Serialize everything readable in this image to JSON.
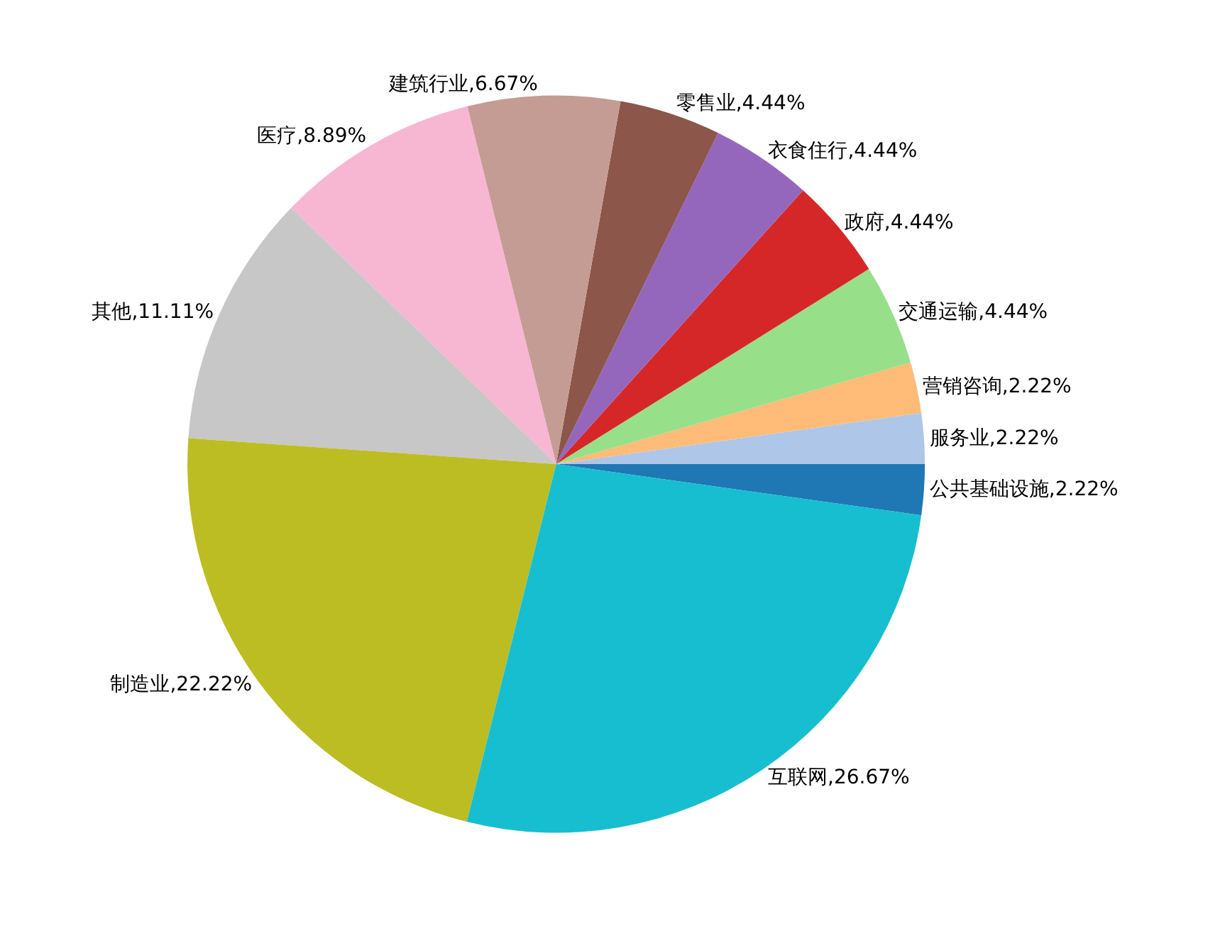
{
  "chart_data": {
    "type": "pie",
    "categories": [
      "公共基础设施",
      "服务业",
      "营销咨询",
      "交通运输",
      "政府",
      "衣食住行",
      "零售业",
      "建筑行业",
      "医疗",
      "其他",
      "制造业",
      "互联网"
    ],
    "values": [
      2.22,
      2.22,
      2.22,
      4.44,
      4.44,
      4.44,
      4.44,
      6.67,
      8.89,
      11.11,
      22.22,
      26.67
    ],
    "colors": [
      "#1f77b4",
      "#aec7e8",
      "#ffbb78",
      "#98df8a",
      "#d62728",
      "#9467bd",
      "#8c564b",
      "#c49c94",
      "#f7b6d2",
      "#c7c7c7",
      "#bcbd22",
      "#17becf"
    ],
    "value_labels": [
      "2.22%",
      "2.22%",
      "2.22%",
      "4.44%",
      "4.44%",
      "4.44%",
      "4.44%",
      "6.67%",
      "8.89%",
      "11.11%",
      "22.22%",
      "26.67%"
    ],
    "legend": false
  }
}
